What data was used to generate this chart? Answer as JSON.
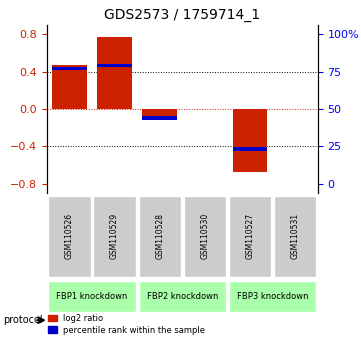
{
  "title": "GDS2573 / 1759714_1",
  "samples": [
    "GSM110526",
    "GSM110529",
    "GSM110528",
    "GSM110530",
    "GSM110527",
    "GSM110531"
  ],
  "log2_ratio": [
    0.47,
    0.77,
    -0.08,
    0.0,
    -0.68,
    0.0
  ],
  "percentile_rank": [
    0.77,
    0.79,
    0.44,
    0.0,
    0.23,
    0.0
  ],
  "percentile_shown": [
    true,
    true,
    true,
    false,
    true,
    false
  ],
  "groups": [
    {
      "label": "FBP1 knockdown",
      "start": 0,
      "end": 2,
      "color": "#aaffaa"
    },
    {
      "label": "FBP2 knockdown",
      "start": 2,
      "end": 4,
      "color": "#aaffaa"
    },
    {
      "label": "FBP3 knockdown",
      "start": 4,
      "end": 6,
      "color": "#aaffaa"
    }
  ],
  "ylim": [
    -0.9,
    0.9
  ],
  "yticks_left": [
    -0.8,
    -0.4,
    0.0,
    0.4,
    0.8
  ],
  "yticks_right": [
    0,
    25,
    50,
    75,
    100
  ],
  "bar_color_red": "#cc2200",
  "bar_color_blue": "#0000cc",
  "legend_red": "log2 ratio",
  "legend_blue": "percentile rank within the sample",
  "protocol_label": "protocol",
  "bar_width": 0.35,
  "background_color": "#ffffff",
  "plot_bg": "#ffffff",
  "grid_color": "#000000",
  "zero_line_color": "#cc2200"
}
